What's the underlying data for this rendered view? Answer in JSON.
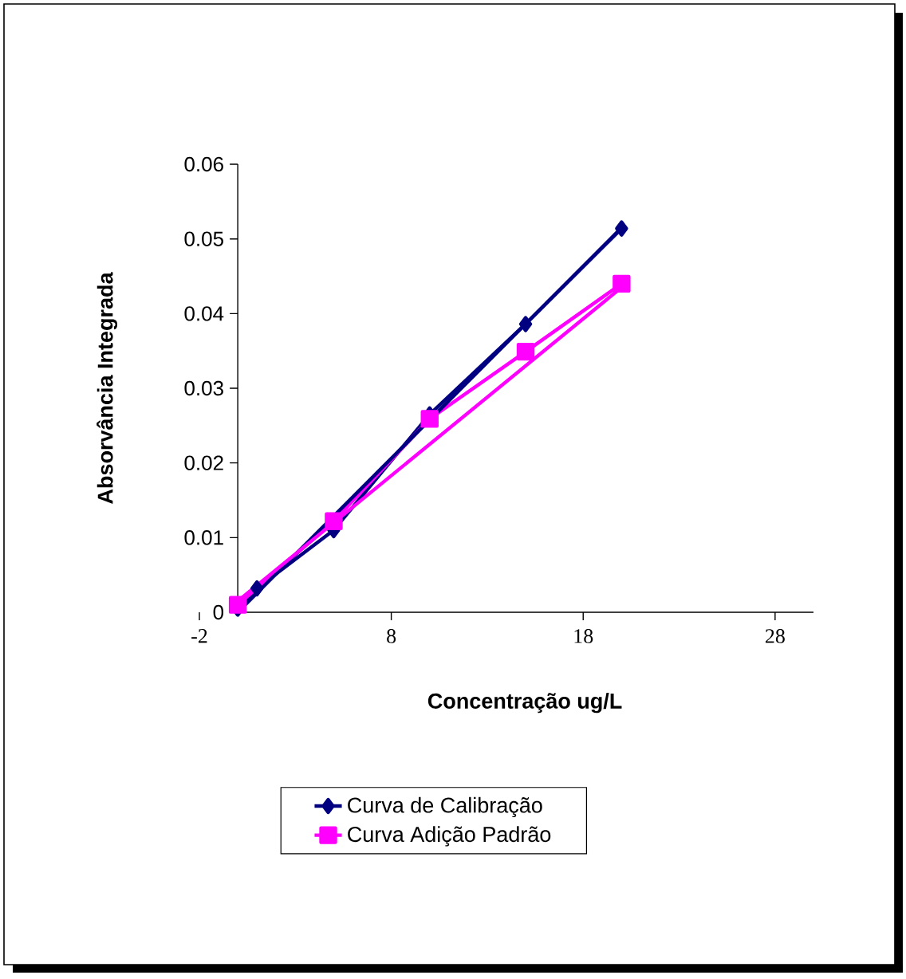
{
  "chart_data": {
    "type": "line",
    "xlabel": "Concentração ug/L",
    "ylabel": "Absorvância Integrada",
    "xlim": [
      -2,
      30
    ],
    "xticks": [
      -2,
      8,
      18,
      28
    ],
    "ylim": [
      0,
      0.06
    ],
    "yticks": [
      0,
      0.01,
      0.02,
      0.03,
      0.04,
      0.05,
      0.06
    ],
    "grid": false,
    "legend": "bottom",
    "series": [
      {
        "name": "Curva de Calibração",
        "color": "#000080",
        "marker": "diamond",
        "x": [
          0,
          1,
          5,
          10,
          15,
          20
        ],
        "values": [
          0.0005,
          0.0032,
          0.011,
          0.0265,
          0.0386,
          0.0514
        ]
      },
      {
        "name": "Curva Adição Padrão",
        "color": "#ff00ff",
        "marker": "square",
        "x": [
          0,
          5,
          10,
          15,
          20
        ],
        "values": [
          0.001,
          0.0122,
          0.0259,
          0.0349,
          0.044
        ]
      },
      {
        "color": "#000080",
        "marker": "none",
        "x": [
          0,
          20
        ],
        "values": [
          0.0,
          0.0515
        ]
      },
      {
        "color": "#ff00ff",
        "marker": "none",
        "x": [
          0,
          20
        ],
        "values": [
          0.0015,
          0.0435
        ]
      }
    ]
  }
}
